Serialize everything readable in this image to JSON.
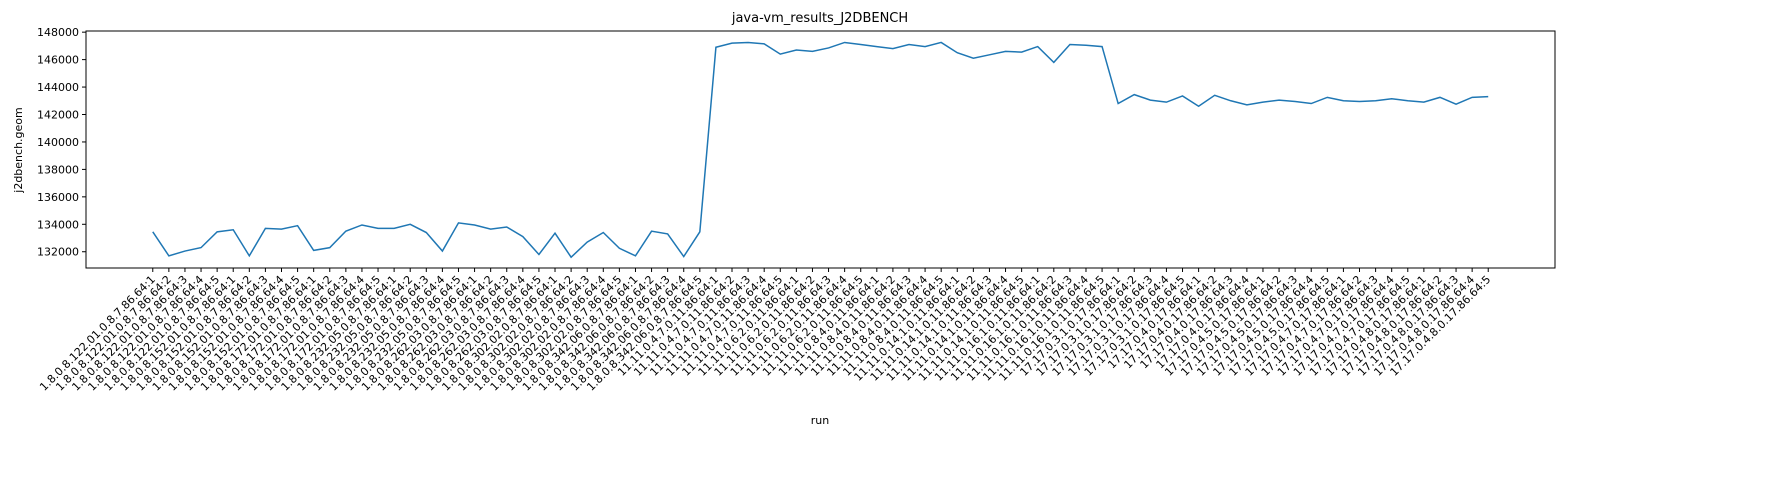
{
  "chart_data": {
    "type": "line",
    "title": "java-vm_results_J2DBENCH",
    "x_label": "run",
    "y_label": "j2dbench.geom",
    "categories": [
      "1.8.0.8.122.01.0.8.7.86.64:1",
      "1.8.0.8.122.01.0.8.7.86.64:2",
      "1.8.0.8.122.01.0.8.7.86.64:3",
      "1.8.0.8.122.01.0.8.7.86.64:4",
      "1.8.0.8.122.01.0.8.7.86.64:5",
      "1.8.0.8.152.01.0.8.7.86.64:1",
      "1.8.0.8.152.01.0.8.7.86.64:2",
      "1.8.0.8.152.01.0.8.7.86.64:3",
      "1.8.0.8.152.01.0.8.7.86.64:4",
      "1.8.0.8.152.01.0.8.7.86.64:5",
      "1.8.0.8.172.01.0.8.7.86.64:1",
      "1.8.0.8.172.01.0.8.7.86.64:2",
      "1.8.0.8.172.01.0.8.7.86.64:3",
      "1.8.0.8.172.01.0.8.7.86.64:4",
      "1.8.0.8.172.01.0.8.7.86.64:5",
      "1.8.0.8.232.05.0.8.7.86.64:1",
      "1.8.0.8.232.05.0.8.7.86.64:2",
      "1.8.0.8.232.05.0.8.7.86.64:3",
      "1.8.0.8.232.05.0.8.7.86.64:4",
      "1.8.0.8.232.05.0.8.7.86.64:5",
      "1.8.0.8.262.03.0.8.7.86.64:1",
      "1.8.0.8.262.03.0.8.7.86.64:2",
      "1.8.0.8.262.03.0.8.7.86.64:3",
      "1.8.0.8.262.03.0.8.7.86.64:4",
      "1.8.0.8.262.03.0.8.7.86.64:5",
      "1.8.0.8.302.02.0.8.7.86.64:1",
      "1.8.0.8.302.02.0.8.7.86.64:2",
      "1.8.0.8.302.02.0.8.7.86.64:3",
      "1.8.0.8.302.02.0.8.7.86.64:4",
      "1.8.0.8.302.02.0.8.7.86.64:5",
      "1.8.0.8.342.06.0.8.7.86.64:1",
      "1.8.0.8.342.06.0.8.7.86.64:2",
      "1.8.0.8.342.06.0.8.7.86.64:3",
      "1.8.0.8.342.06.0.8.7.86.64:4",
      "1.8.0.8.342.06.0.8.7.86.64:5",
      "11.11.0.4.7.0.11.86.64:1",
      "11.11.0.4.7.0.11.86.64:2",
      "11.11.0.4.7.0.11.86.64:3",
      "11.11.0.4.7.0.11.86.64:4",
      "11.11.0.4.7.0.11.86.64:5",
      "11.11.0.6.2.0.11.86.64:1",
      "11.11.0.6.2.0.11.86.64:2",
      "11.11.0.6.2.0.11.86.64:3",
      "11.11.0.6.2.0.11.86.64:4",
      "11.11.0.6.2.0.11.86.64:5",
      "11.11.0.8.4.0.11.86.64:1",
      "11.11.0.8.4.0.11.86.64:2",
      "11.11.0.8.4.0.11.86.64:3",
      "11.11.0.8.4.0.11.86.64:4",
      "11.11.0.8.4.0.11.86.64:5",
      "11.11.0.14.1.0.11.86.64:1",
      "11.11.0.14.1.0.11.86.64:2",
      "11.11.0.14.1.0.11.86.64:3",
      "11.11.0.14.1.0.11.86.64:4",
      "11.11.0.14.1.0.11.86.64:5",
      "11.11.0.16.1.0.11.86.64:1",
      "11.11.0.16.1.0.11.86.64:2",
      "11.11.0.16.1.0.11.86.64:3",
      "11.11.0.16.1.0.11.86.64:4",
      "11.11.0.16.1.0.11.86.64:5",
      "17.17.0.3.1.0.17.86.64:1",
      "17.17.0.3.1.0.17.86.64:2",
      "17.17.0.3.1.0.17.86.64:3",
      "17.17.0.3.1.0.17.86.64:4",
      "17.17.0.3.1.0.17.86.64:5",
      "17.17.0.4.0.17.86.64:1",
      "17.17.0.4.0.17.86.64:2",
      "17.17.0.4.0.17.86.64:3",
      "17.17.0.4.0.17.86.64:4",
      "17.17.0.4.5.0.17.86.64:1",
      "17.17.0.4.5.0.17.86.64:2",
      "17.17.0.4.5.0.17.86.64:3",
      "17.17.0.4.5.0.17.86.64:4",
      "17.17.0.4.5.0.17.86.64:5",
      "17.17.0.4.7.0.17.86.64:1",
      "17.17.0.4.7.0.17.86.64:2",
      "17.17.0.4.7.0.17.86.64:3",
      "17.17.0.4.7.0.17.86.64:4",
      "17.17.0.4.7.0.17.86.64:5",
      "17.17.0.4.8.0.17.86.64:1",
      "17.17.0.4.8.0.17.86.64:2",
      "17.17.0.4.8.0.17.86.64:3",
      "17.17.0.4.8.0.17.86.64:4",
      "17.17.0.4.8.0.17.86.64:5"
    ],
    "values": [
      133450,
      131700,
      132050,
      132300,
      133450,
      133600,
      131700,
      133700,
      133650,
      133900,
      132100,
      132300,
      133500,
      133950,
      133700,
      133700,
      134000,
      133400,
      132050,
      134100,
      133950,
      133650,
      133800,
      133100,
      131800,
      133350,
      131600,
      132700,
      133400,
      132250,
      131700,
      133500,
      133300,
      131650,
      133450,
      146900,
      147200,
      147250,
      147150,
      146400,
      146700,
      146600,
      146850,
      147250,
      147100,
      146950,
      146800,
      147100,
      146950,
      147250,
      146500,
      146100,
      146350,
      146600,
      146550,
      146950,
      145800,
      147100,
      147050,
      146950,
      142800,
      143450,
      143050,
      142900,
      143350,
      142600,
      143400,
      143000,
      142700,
      142900,
      143050,
      142950,
      142800,
      143250,
      143000,
      142950,
      143000,
      143150,
      143000,
      142900,
      143250,
      142750,
      143250,
      143300
    ],
    "color": "#1f77b4",
    "ylim": [
      130815,
      148085
    ],
    "yticks": [
      132000,
      134000,
      136000,
      138000,
      140000,
      142000,
      144000,
      146000,
      148000
    ]
  }
}
